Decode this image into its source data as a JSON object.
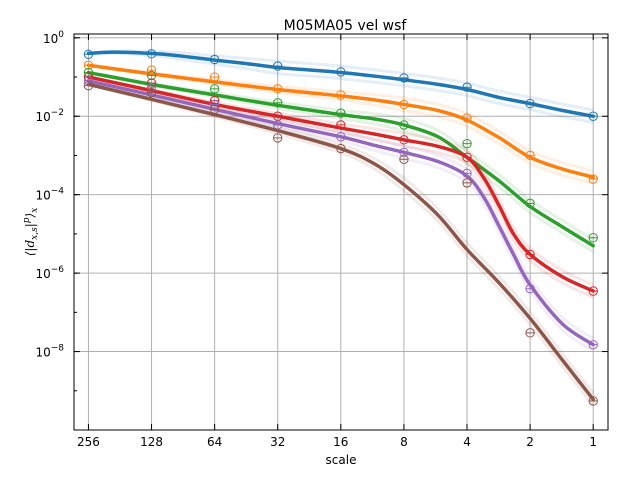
{
  "chart_data": {
    "type": "line",
    "title": "M05MA05 vel wsf",
    "xlabel": "scale",
    "ylabel": "⟨|d_{x,s}|^p⟩_x",
    "x_scale": "log2-reversed",
    "y_scale": "log10",
    "xlim": [
      300,
      0.85
    ],
    "ylim": [
      1e-10,
      1.25
    ],
    "x_ticks": [
      256,
      128,
      64,
      32,
      16,
      8,
      4,
      2,
      1
    ],
    "x_tick_labels": [
      "256",
      "128",
      "64",
      "32",
      "16",
      "8",
      "4",
      "2",
      "1"
    ],
    "y_ticks": [
      1,
      0.01,
      0.0001,
      1e-06,
      1e-08
    ],
    "y_tick_exponents": [
      "0",
      "−2",
      "−4",
      "−6",
      "−8"
    ],
    "y_tick_base": "10",
    "grid": true,
    "marker_x": [
      256,
      128,
      64,
      32,
      16,
      8,
      4,
      2,
      1
    ],
    "series": [
      {
        "color": "#1f77b4",
        "curve_x": [
          256,
          192,
          128,
          96,
          64,
          45,
          32,
          22,
          16,
          11,
          8,
          5.5,
          4,
          2.8,
          2,
          1.4,
          1
        ],
        "curve_y": [
          0.4,
          0.43,
          0.4,
          0.35,
          0.27,
          0.22,
          0.175,
          0.15,
          0.13,
          0.105,
          0.085,
          0.065,
          0.048,
          0.03,
          0.021,
          0.014,
          0.01
        ],
        "markers": [
          0.38,
          0.39,
          0.28,
          0.19,
          0.135,
          0.095,
          0.055,
          0.021,
          0.01
        ]
      },
      {
        "color": "#ff7f0e",
        "curve_x": [
          256,
          128,
          64,
          32,
          16,
          11,
          8,
          5.5,
          4,
          2.8,
          2,
          1.4,
          1
        ],
        "curve_y": [
          0.2,
          0.12,
          0.075,
          0.048,
          0.033,
          0.026,
          0.02,
          0.014,
          0.008,
          0.0028,
          0.0009,
          0.00045,
          0.00028
        ],
        "markers": [
          0.2,
          0.15,
          0.1,
          0.05,
          0.035,
          0.02,
          0.009,
          0.001,
          0.00025
        ]
      },
      {
        "color": "#2ca02c",
        "curve_x": [
          256,
          128,
          64,
          32,
          16,
          11,
          8,
          5.5,
          4,
          2.8,
          2,
          1.4,
          1
        ],
        "curve_y": [
          0.13,
          0.065,
          0.035,
          0.019,
          0.011,
          0.0085,
          0.006,
          0.003,
          0.0009,
          0.00022,
          5e-05,
          1.5e-05,
          5e-06
        ],
        "markers": [
          0.13,
          0.11,
          0.05,
          0.022,
          0.012,
          0.006,
          0.002,
          6e-05,
          8e-06
        ]
      },
      {
        "color": "#d62728",
        "curve_x": [
          256,
          128,
          64,
          32,
          16,
          11,
          8,
          5.5,
          4,
          3.3,
          2.8,
          2.4,
          2,
          1.4,
          1
        ],
        "curve_y": [
          0.1,
          0.045,
          0.02,
          0.01,
          0.005,
          0.0035,
          0.0025,
          0.0017,
          0.0009,
          0.00025,
          5e-05,
          1e-05,
          3e-06,
          8e-07,
          3.5e-07
        ],
        "markers": [
          0.1,
          0.07,
          0.025,
          0.01,
          0.006,
          0.0025,
          0.0009,
          3e-06,
          3.5e-07
        ]
      },
      {
        "color": "#9467bd",
        "curve_x": [
          256,
          128,
          64,
          32,
          16,
          11,
          8,
          5.5,
          4,
          3.3,
          2.8,
          2.4,
          2,
          1.4,
          1
        ],
        "curve_y": [
          0.08,
          0.035,
          0.015,
          0.0065,
          0.003,
          0.0018,
          0.0012,
          0.0007,
          0.0003,
          8e-05,
          1.5e-05,
          3e-06,
          5e-07,
          5e-08,
          1.5e-08
        ],
        "markers": [
          0.08,
          0.055,
          0.02,
          0.006,
          0.003,
          0.0012,
          0.00035,
          4e-07,
          1.5e-08
        ]
      },
      {
        "color": "#8c564b",
        "curve_x": [
          256,
          128,
          64,
          32,
          16,
          11,
          8,
          5.5,
          4,
          2.8,
          2,
          1.4,
          1
        ],
        "curve_y": [
          0.065,
          0.027,
          0.011,
          0.0043,
          0.0015,
          0.0006,
          0.00018,
          3e-05,
          4e-06,
          5.5e-07,
          7e-08,
          6e-09,
          6e-10
        ],
        "markers": [
          0.06,
          0.04,
          0.015,
          0.0028,
          0.0015,
          0.0008,
          0.0002,
          3e-08,
          5.5e-10
        ]
      }
    ]
  }
}
